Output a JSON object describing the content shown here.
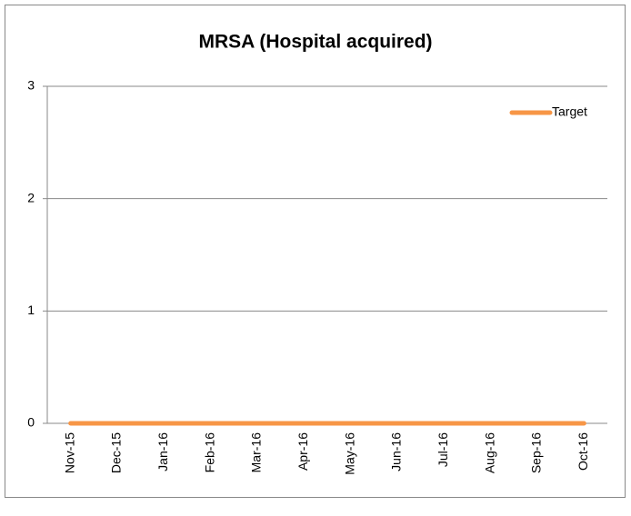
{
  "chart_data": {
    "type": "line",
    "title": "MRSA (Hospital acquired)",
    "categories": [
      "Nov-15",
      "Dec-15",
      "Jan-16",
      "Feb-16",
      "Mar-16",
      "Apr-16",
      "May-16",
      "Jun-16",
      "Jul-16",
      "Aug-16",
      "Sep-16",
      "Oct-16"
    ],
    "series": [
      {
        "name": "Target",
        "color": "#f79646",
        "values": [
          0,
          0,
          0,
          0,
          0,
          0,
          0,
          0,
          0,
          0,
          0,
          0
        ]
      }
    ],
    "ylim": [
      0,
      3
    ],
    "yticks": [
      0,
      1,
      2,
      3
    ],
    "grid": true,
    "legend": "top-right"
  }
}
